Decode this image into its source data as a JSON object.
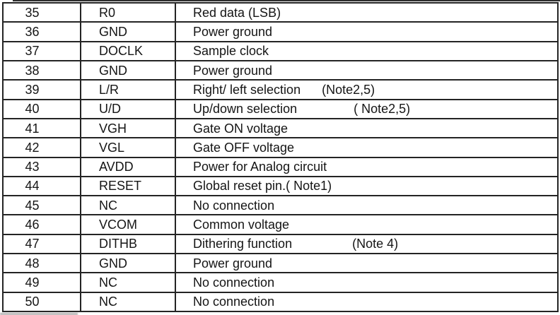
{
  "table": {
    "columns": [
      "pin_number",
      "pin_name",
      "description"
    ],
    "rows": [
      {
        "pin": "35",
        "name": "R0",
        "description": "Red data (LSB)"
      },
      {
        "pin": "36",
        "name": "GND",
        "description": "Power ground"
      },
      {
        "pin": "37",
        "name": "DOCLK",
        "description": "Sample clock"
      },
      {
        "pin": "38",
        "name": "GND",
        "description": "Power ground"
      },
      {
        "pin": "39",
        "name": "L/R",
        "description": "Right/ left selection      (Note2,5)"
      },
      {
        "pin": "40",
        "name": "U/D",
        "description": "Up/down selection                ( Note2,5)"
      },
      {
        "pin": "41",
        "name": "VGH",
        "description": "Gate ON voltage"
      },
      {
        "pin": "42",
        "name": "VGL",
        "description": "Gate OFF voltage"
      },
      {
        "pin": "43",
        "name": "AVDD",
        "description": "Power for Analog circuit"
      },
      {
        "pin": "44",
        "name": "RESET",
        "description": "Global reset pin.( Note1)"
      },
      {
        "pin": "45",
        "name": "NC",
        "description": "No connection"
      },
      {
        "pin": "46",
        "name": "VCOM",
        "description": "Common voltage"
      },
      {
        "pin": "47",
        "name": "DITHB",
        "description": "Dithering function                 (Note 4)"
      },
      {
        "pin": "48",
        "name": "GND",
        "description": "Power ground"
      },
      {
        "pin": "49",
        "name": "NC",
        "description": "No connection"
      },
      {
        "pin": "50",
        "name": "NC",
        "description": "No connection"
      }
    ]
  }
}
